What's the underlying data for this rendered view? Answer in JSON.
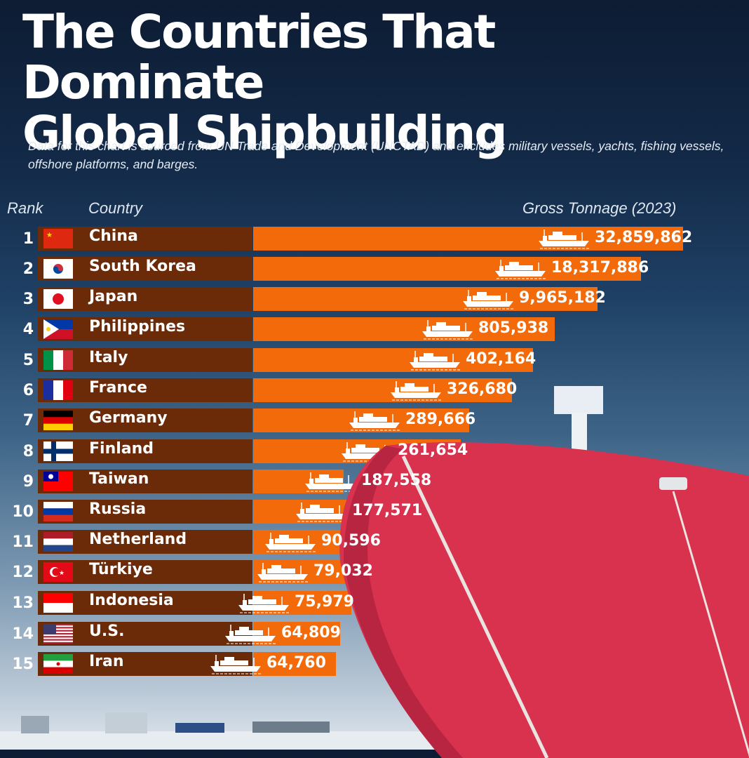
{
  "title_line1": "The Countries That Dominate",
  "title_line2": "Global Shipbuilding",
  "subtitle": "Data for this chart is sourced from UN Trade and Development (UNCTAD) and excludes military vessels, yachts, fishing vessels, offshore platforms, and barges.",
  "headers": {
    "rank": "Rank",
    "country": "Country",
    "value": "Gross Tonnage (2023)"
  },
  "colors": {
    "bar": "#f26a0a",
    "label_box": "#6b2a08"
  },
  "chart_data": {
    "type": "bar",
    "orientation": "horizontal",
    "title": "The Countries That Dominate Global Shipbuilding",
    "xlabel": "Gross Tonnage (2023)",
    "ylabel": "Country",
    "scale": "non-linear (decorative)",
    "categories": [
      "China",
      "South Korea",
      "Japan",
      "Philippines",
      "Italy",
      "France",
      "Germany",
      "Finland",
      "Taiwan",
      "Russia",
      "Netherland",
      "Türkiye",
      "Indonesia",
      "U.S.",
      "Iran"
    ],
    "ranks": [
      1,
      2,
      3,
      4,
      5,
      6,
      7,
      8,
      9,
      10,
      11,
      12,
      13,
      14,
      15
    ],
    "values": [
      32859862,
      18317886,
      9965182,
      805938,
      402164,
      326680,
      289666,
      261654,
      187558,
      177571,
      90596,
      79032,
      75979,
      64809,
      64760
    ],
    "labels": [
      "32,859,862",
      "18,317,886",
      "9,965,182",
      "805,938",
      "402,164",
      "326,680",
      "289,666",
      "261,654",
      "187,558",
      "177,571",
      "90,596",
      "79,032",
      "75,979",
      "64,809",
      "64,760"
    ],
    "flags": [
      "china-flag",
      "south-korea-flag",
      "japan-flag",
      "philippines-flag",
      "italy-flag",
      "france-flag",
      "germany-flag",
      "finland-flag",
      "taiwan-flag",
      "russia-flag",
      "netherlands-flag",
      "turkiye-flag",
      "indonesia-flag",
      "us-flag",
      "iran-flag"
    ]
  }
}
